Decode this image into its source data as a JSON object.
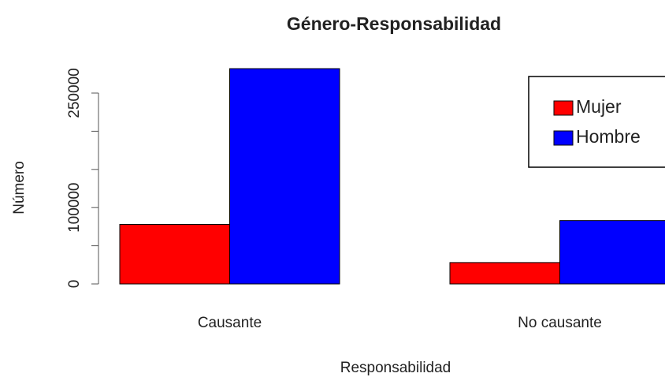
{
  "chart_data": {
    "type": "bar",
    "title": "Género-Responsabilidad",
    "x_label": "Responsabilidad",
    "y_label": "Número",
    "categories": [
      "Causante",
      "No causante"
    ],
    "series": [
      {
        "name": "Mujer",
        "color": "#ff0000",
        "values": [
          78000,
          28000
        ]
      },
      {
        "name": "Hombre",
        "color": "#0000ff",
        "values": [
          282000,
          83000
        ]
      }
    ],
    "ylim": [
      0,
      290000
    ],
    "yticks": [
      0,
      {
        "value": 50000,
        "label": null
      },
      100000,
      {
        "value": 150000,
        "label": null
      },
      {
        "value": 200000,
        "label": null
      },
      250000
    ],
    "grid": false,
    "legend": "top-right"
  }
}
